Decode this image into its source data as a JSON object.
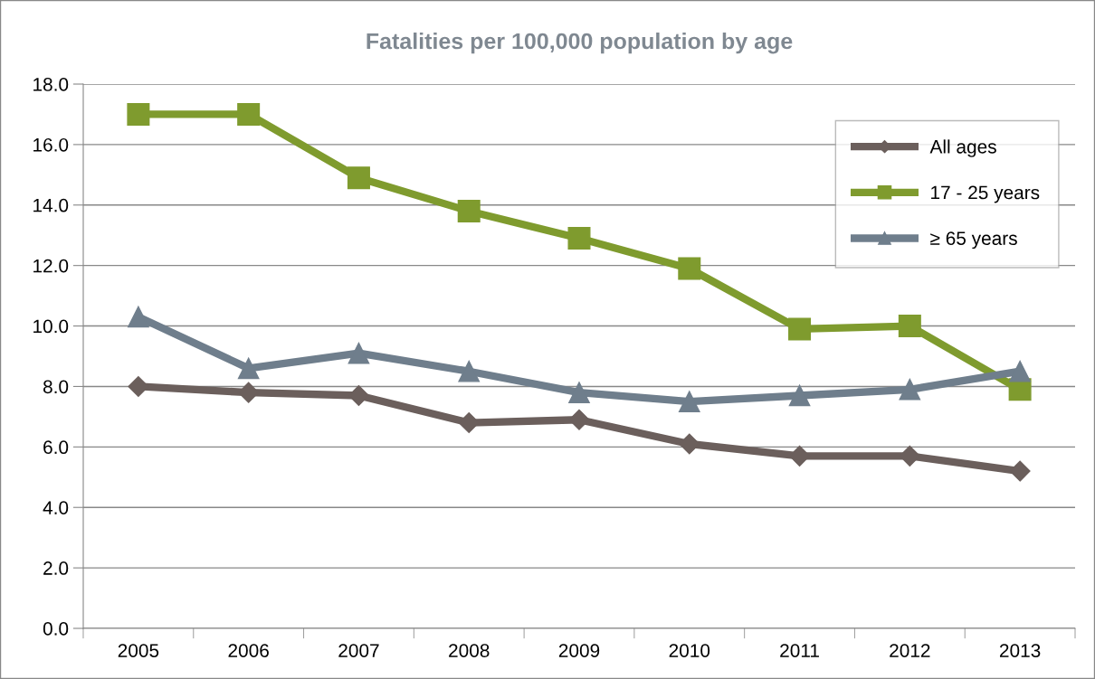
{
  "chart_data": {
    "type": "line",
    "title": "Fatalities per 100,000 population by age",
    "categories": [
      "2005",
      "2006",
      "2007",
      "2008",
      "2009",
      "2010",
      "2011",
      "2012",
      "2013"
    ],
    "series": [
      {
        "name": "All ages",
        "color": "#6b5f5c",
        "marker": "diamond",
        "values": [
          8.0,
          7.8,
          7.7,
          6.8,
          6.9,
          6.1,
          5.7,
          5.7,
          5.2
        ]
      },
      {
        "name": "17 - 25 years",
        "color": "#7f9b2e",
        "marker": "square",
        "values": [
          17.0,
          17.0,
          14.9,
          13.8,
          12.9,
          11.9,
          9.9,
          10.0,
          7.9
        ]
      },
      {
        "name": "≥ 65 years",
        "color": "#6f7e8c",
        "marker": "triangle",
        "values": [
          10.3,
          8.6,
          9.1,
          8.5,
          7.8,
          7.5,
          7.7,
          7.9,
          8.5
        ]
      }
    ],
    "ylim": [
      0,
      18
    ],
    "yticks": [
      {
        "value": 0,
        "label": "0.0"
      },
      {
        "value": 2,
        "label": "2.0"
      },
      {
        "value": 4,
        "label": "4.0"
      },
      {
        "value": 6,
        "label": "6.0"
      },
      {
        "value": 8,
        "label": "8.0"
      },
      {
        "value": 10,
        "label": "10.0"
      },
      {
        "value": 12,
        "label": "12.0"
      },
      {
        "value": 14,
        "label": "14.0"
      },
      {
        "value": 16,
        "label": "16.0"
      },
      {
        "value": 18,
        "label": "18.0"
      }
    ],
    "grid": "y",
    "legend": "top right",
    "line_style": "solid"
  }
}
